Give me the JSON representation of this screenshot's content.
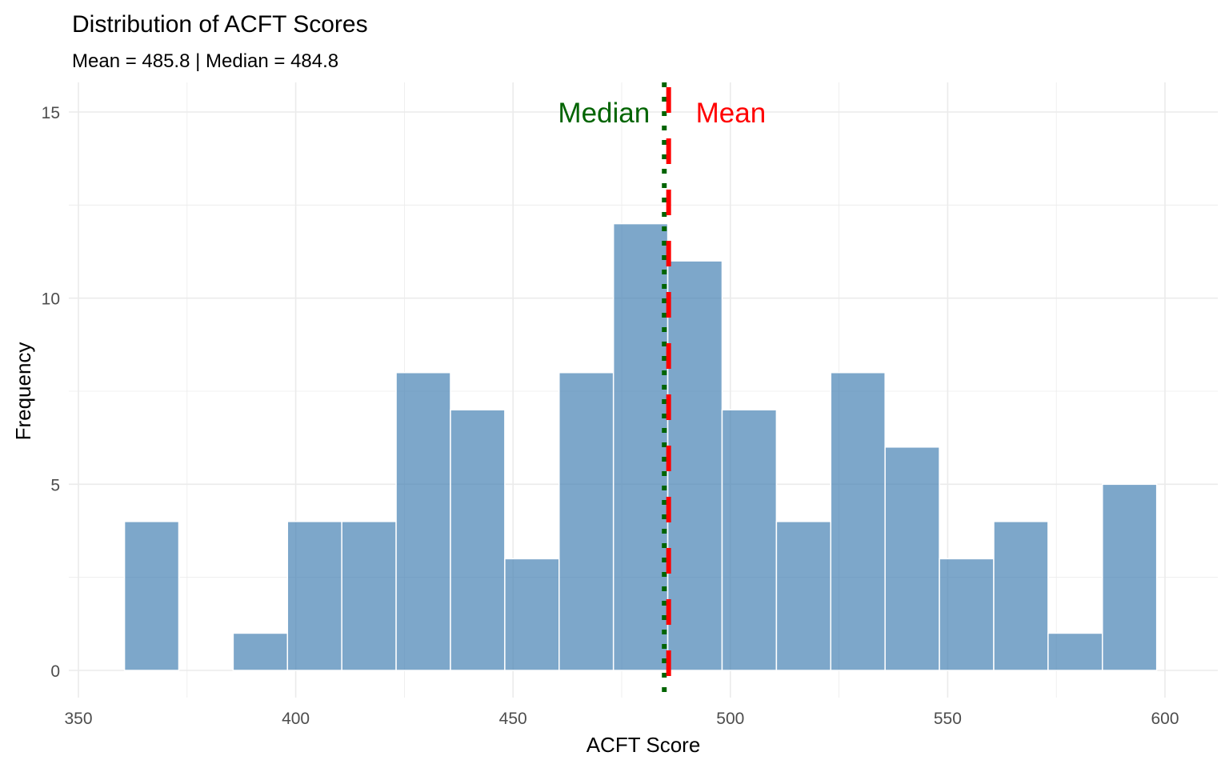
{
  "chart_data": {
    "type": "bar",
    "title": "Distribution of ACFT Scores",
    "subtitle": "Mean = 485.8 | Median = 484.8",
    "xlabel": "ACFT Score",
    "ylabel": "Frequency",
    "xlim": [
      350,
      600
    ],
    "ylim": [
      0,
      15
    ],
    "x_ticks": [
      350,
      400,
      450,
      500,
      550,
      600
    ],
    "y_ticks": [
      0,
      5,
      10,
      15
    ],
    "bin_width": 12.5,
    "bins": [
      {
        "start": 360.6,
        "end": 373.1,
        "count": 4
      },
      {
        "start": 373.1,
        "end": 385.6,
        "count": 0
      },
      {
        "start": 385.6,
        "end": 398.1,
        "count": 1
      },
      {
        "start": 398.1,
        "end": 410.6,
        "count": 4
      },
      {
        "start": 410.6,
        "end": 423.1,
        "count": 4
      },
      {
        "start": 423.1,
        "end": 435.6,
        "count": 8
      },
      {
        "start": 435.6,
        "end": 448.1,
        "count": 7
      },
      {
        "start": 448.1,
        "end": 460.6,
        "count": 3
      },
      {
        "start": 460.6,
        "end": 473.1,
        "count": 8
      },
      {
        "start": 473.1,
        "end": 485.6,
        "count": 12
      },
      {
        "start": 485.6,
        "end": 498.1,
        "count": 11
      },
      {
        "start": 498.1,
        "end": 510.6,
        "count": 7
      },
      {
        "start": 510.6,
        "end": 523.1,
        "count": 4
      },
      {
        "start": 523.1,
        "end": 535.6,
        "count": 8
      },
      {
        "start": 535.6,
        "end": 548.1,
        "count": 6
      },
      {
        "start": 548.1,
        "end": 560.6,
        "count": 3
      },
      {
        "start": 560.6,
        "end": 573.1,
        "count": 4
      },
      {
        "start": 573.1,
        "end": 585.6,
        "count": 1
      },
      {
        "start": 585.6,
        "end": 598.1,
        "count": 5
      }
    ],
    "mean": 485.8,
    "median": 484.8,
    "mean_label": "Mean",
    "median_label": "Median",
    "grid": true,
    "colors": {
      "bar_fill": "#4682B4",
      "bar_stroke": "#ffffff",
      "mean_line": "#FF0000",
      "median_line": "#006400",
      "grid": "#EBEBEB",
      "text": "#000000",
      "tick_text": "#4D4D4D"
    }
  }
}
